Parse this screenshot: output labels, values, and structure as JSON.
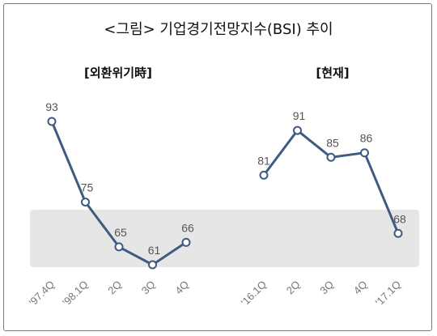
{
  "title": "<그림> 기업경기전망지수(BSI) 추이",
  "colors": {
    "line": "#3f5b82",
    "band": "#e6e6e6",
    "marker_fill": "#ffffff"
  },
  "chart_data": [
    {
      "type": "line",
      "title": "[외환위기時]",
      "categories": [
        "'97.4Q",
        "'98.1Q",
        "2Q",
        "3Q",
        "4Q"
      ],
      "values": [
        93,
        75,
        65,
        61,
        66
      ],
      "ylim": [
        52,
        100
      ],
      "grid": false
    },
    {
      "type": "line",
      "title": "[현재]",
      "categories": [
        "'16.1Q",
        "2Q",
        "3Q",
        "4Q",
        "'17.1Q"
      ],
      "values": [
        81,
        91,
        85,
        86,
        68
      ],
      "ylim": [
        52,
        100
      ],
      "grid": false
    }
  ]
}
